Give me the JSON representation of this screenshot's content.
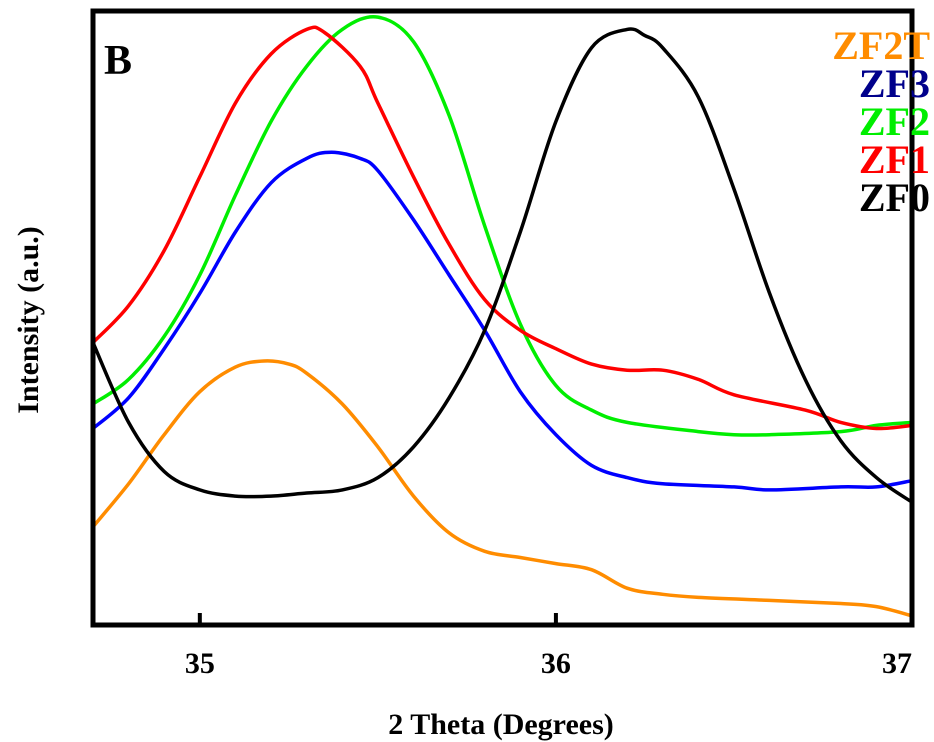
{
  "chart_data": {
    "type": "line",
    "panel_label": "B",
    "xlabel": "2  Theta (Degrees)",
    "ylabel": "Intensity (a.u.)",
    "xlim": [
      34.7,
      37.0
    ],
    "ylim": [
      0,
      100
    ],
    "x_ticks": [
      35,
      36,
      37
    ],
    "y_ticks": [],
    "grid": false,
    "legend_position": "top-right",
    "series": [
      {
        "name": "ZF2T",
        "color": "#ff8c00",
        "points": [
          [
            34.7,
            16
          ],
          [
            34.8,
            23
          ],
          [
            34.9,
            31
          ],
          [
            35.0,
            38
          ],
          [
            35.1,
            42
          ],
          [
            35.18,
            43
          ],
          [
            35.25,
            42.5
          ],
          [
            35.3,
            41
          ],
          [
            35.4,
            36
          ],
          [
            35.5,
            29
          ],
          [
            35.6,
            21
          ],
          [
            35.7,
            15
          ],
          [
            35.8,
            12
          ],
          [
            35.9,
            11
          ],
          [
            36.0,
            10
          ],
          [
            36.1,
            9
          ],
          [
            36.2,
            6
          ],
          [
            36.3,
            5
          ],
          [
            36.4,
            4.5
          ],
          [
            36.6,
            4
          ],
          [
            36.8,
            3.5
          ],
          [
            36.9,
            3
          ],
          [
            37.0,
            1.5
          ]
        ]
      },
      {
        "name": "ZF3",
        "color": "#0000ff",
        "points": [
          [
            34.7,
            32
          ],
          [
            34.8,
            37
          ],
          [
            34.9,
            45
          ],
          [
            35.0,
            54
          ],
          [
            35.1,
            64
          ],
          [
            35.2,
            72
          ],
          [
            35.3,
            76
          ],
          [
            35.37,
            77
          ],
          [
            35.45,
            76
          ],
          [
            35.5,
            74
          ],
          [
            35.6,
            66
          ],
          [
            35.7,
            57
          ],
          [
            35.8,
            48
          ],
          [
            35.9,
            38
          ],
          [
            36.0,
            31
          ],
          [
            36.1,
            26
          ],
          [
            36.2,
            24
          ],
          [
            36.3,
            23
          ],
          [
            36.5,
            22.5
          ],
          [
            36.6,
            22
          ],
          [
            36.8,
            22.5
          ],
          [
            36.9,
            22.5
          ],
          [
            37.0,
            23.5
          ]
        ]
      },
      {
        "name": "ZF2",
        "color": "#00ee00",
        "points": [
          [
            34.7,
            36
          ],
          [
            34.8,
            40
          ],
          [
            34.9,
            47
          ],
          [
            35.0,
            57
          ],
          [
            35.1,
            70
          ],
          [
            35.2,
            82
          ],
          [
            35.3,
            91
          ],
          [
            35.4,
            97
          ],
          [
            35.5,
            99
          ],
          [
            35.6,
            95
          ],
          [
            35.7,
            83
          ],
          [
            35.8,
            65
          ],
          [
            35.9,
            49
          ],
          [
            36.0,
            39
          ],
          [
            36.1,
            35
          ],
          [
            36.2,
            33
          ],
          [
            36.4,
            31.5
          ],
          [
            36.5,
            31
          ],
          [
            36.6,
            31
          ],
          [
            36.8,
            31.5
          ],
          [
            36.9,
            32.5
          ],
          [
            37.0,
            33
          ]
        ]
      },
      {
        "name": "ZF1",
        "color": "#ff0000",
        "points": [
          [
            34.7,
            46
          ],
          [
            34.8,
            52
          ],
          [
            34.9,
            61
          ],
          [
            35.0,
            73
          ],
          [
            35.1,
            85
          ],
          [
            35.2,
            93
          ],
          [
            35.3,
            97
          ],
          [
            35.35,
            96.5
          ],
          [
            35.45,
            91
          ],
          [
            35.5,
            85
          ],
          [
            35.6,
            73
          ],
          [
            35.7,
            62
          ],
          [
            35.8,
            53
          ],
          [
            35.9,
            48
          ],
          [
            36.0,
            45
          ],
          [
            36.1,
            42.5
          ],
          [
            36.2,
            41.5
          ],
          [
            36.3,
            41.5
          ],
          [
            36.4,
            40
          ],
          [
            36.5,
            37.5
          ],
          [
            36.7,
            35
          ],
          [
            36.8,
            33
          ],
          [
            36.9,
            32
          ],
          [
            37.0,
            32.5
          ]
        ]
      },
      {
        "name": "ZF0",
        "color": "#000000",
        "points": [
          [
            34.7,
            46
          ],
          [
            34.8,
            33
          ],
          [
            34.9,
            25
          ],
          [
            35.0,
            22
          ],
          [
            35.1,
            21
          ],
          [
            35.2,
            21
          ],
          [
            35.3,
            21.5
          ],
          [
            35.4,
            22
          ],
          [
            35.5,
            24
          ],
          [
            35.6,
            29
          ],
          [
            35.7,
            37
          ],
          [
            35.8,
            48
          ],
          [
            35.9,
            64
          ],
          [
            36.0,
            82
          ],
          [
            36.1,
            94
          ],
          [
            36.2,
            97
          ],
          [
            36.25,
            96
          ],
          [
            36.3,
            94
          ],
          [
            36.4,
            86
          ],
          [
            36.5,
            71
          ],
          [
            36.6,
            54
          ],
          [
            36.7,
            40
          ],
          [
            36.8,
            30
          ],
          [
            36.9,
            24
          ],
          [
            37.0,
            20
          ]
        ]
      }
    ]
  }
}
